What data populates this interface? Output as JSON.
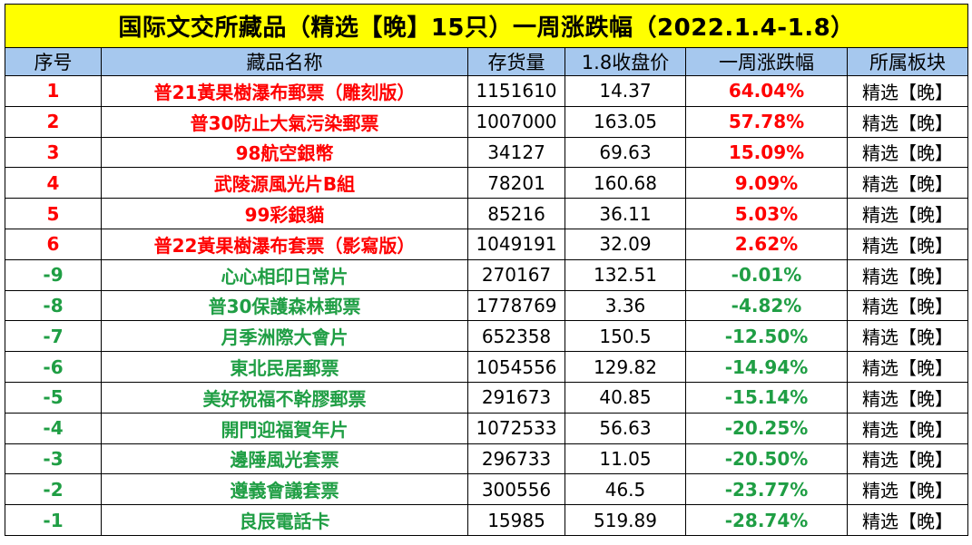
{
  "title": "国际文交所藏品（精选【晚】15只）一周涨跌幅（2022.1.4-1.8）",
  "headers": [
    "序号",
    "藏品名称",
    "存货量",
    "1.8收盘价",
    "一周涨跌幅",
    "所属板块"
  ],
  "colors": {
    "title_bg": "#ffff00",
    "header_bg": "#a6c8ee",
    "up": "#ff0000",
    "down": "#1f9e44"
  },
  "rows": [
    {
      "rank": "1",
      "name": "普21黃果樹瀑布郵票（雕刻版）",
      "stock": "1151610",
      "close": "14.37",
      "change": "64.04%",
      "sector": "精选【晚】",
      "trend": "up"
    },
    {
      "rank": "2",
      "name": "普30防止大氣污染郵票",
      "stock": "1007000",
      "close": "163.05",
      "change": "57.78%",
      "sector": "精选【晚】",
      "trend": "up"
    },
    {
      "rank": "3",
      "name": "98航空銀幣",
      "stock": "34127",
      "close": "69.63",
      "change": "15.09%",
      "sector": "精选【晚】",
      "trend": "up"
    },
    {
      "rank": "4",
      "name": "武陵源風光片B組",
      "stock": "78201",
      "close": "160.68",
      "change": "9.09%",
      "sector": "精选【晚】",
      "trend": "up"
    },
    {
      "rank": "5",
      "name": "99彩銀貓",
      "stock": "85216",
      "close": "36.11",
      "change": "5.03%",
      "sector": "精选【晚】",
      "trend": "up"
    },
    {
      "rank": "6",
      "name": "普22黃果樹瀑布套票（影寫版）",
      "stock": "1049191",
      "close": "32.09",
      "change": "2.62%",
      "sector": "精选【晚】",
      "trend": "up"
    },
    {
      "rank": "-9",
      "name": "心心相印日常片",
      "stock": "270167",
      "close": "132.51",
      "change": "-0.01%",
      "sector": "精选【晚】",
      "trend": "down"
    },
    {
      "rank": "-8",
      "name": "普30保護森林郵票",
      "stock": "1778769",
      "close": "3.36",
      "change": "-4.82%",
      "sector": "精选【晚】",
      "trend": "down"
    },
    {
      "rank": "-7",
      "name": "月季洲際大會片",
      "stock": "652358",
      "close": "150.5",
      "change": "-12.50%",
      "sector": "精选【晚】",
      "trend": "down"
    },
    {
      "rank": "-6",
      "name": "東北民居郵票",
      "stock": "1054556",
      "close": "129.82",
      "change": "-14.94%",
      "sector": "精选【晚】",
      "trend": "down"
    },
    {
      "rank": "-5",
      "name": "美好祝福不幹膠郵票",
      "stock": "291673",
      "close": "40.85",
      "change": "-15.14%",
      "sector": "精选【晚】",
      "trend": "down"
    },
    {
      "rank": "-4",
      "name": "開門迎福賀年片",
      "stock": "1072533",
      "close": "56.63",
      "change": "-20.25%",
      "sector": "精选【晚】",
      "trend": "down"
    },
    {
      "rank": "-3",
      "name": "邊陲風光套票",
      "stock": "296733",
      "close": "11.05",
      "change": "-20.50%",
      "sector": "精选【晚】",
      "trend": "down"
    },
    {
      "rank": "-2",
      "name": "遵義會議套票",
      "stock": "300556",
      "close": "46.5",
      "change": "-23.77%",
      "sector": "精选【晚】",
      "trend": "down"
    },
    {
      "rank": "-1",
      "name": "良辰電話卡",
      "stock": "15985",
      "close": "519.89",
      "change": "-28.74%",
      "sector": "精选【晚】",
      "trend": "down"
    }
  ]
}
